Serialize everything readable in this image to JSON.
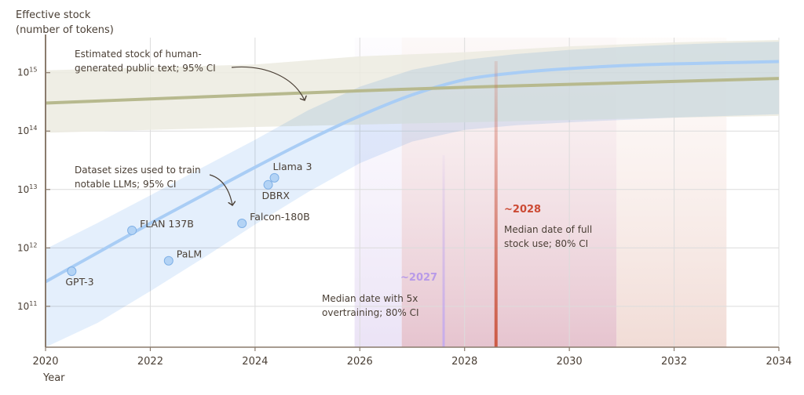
{
  "chart_data": {
    "type": "line",
    "title": "",
    "ylabel_lines": [
      "Effective stock",
      "(number of tokens)"
    ],
    "xlabel": "Year",
    "yscale": "log",
    "xlim": [
      2020,
      2034
    ],
    "ylim_log10": [
      10.3,
      15.6
    ],
    "x_ticks": [
      2020,
      2022,
      2024,
      2026,
      2028,
      2030,
      2032,
      2034
    ],
    "x_tick_labels": [
      "2020",
      "2022",
      "2024",
      "2026",
      "2028",
      "2030",
      "2032",
      "2034"
    ],
    "y_ticks_log10": [
      11,
      12,
      13,
      14,
      15
    ],
    "y_tick_labels": [
      {
        "base": "10",
        "exp": "11"
      },
      {
        "base": "10",
        "exp": "12"
      },
      {
        "base": "10",
        "exp": "13"
      },
      {
        "base": "10",
        "exp": "14"
      },
      {
        "base": "10",
        "exp": "15"
      }
    ],
    "grid": true,
    "colors": {
      "stock_line": "#b7b98e",
      "stock_band": "#ecebe0",
      "dataset_line": "#a9cdf5",
      "dataset_band": "#dbeafb",
      "point_fill": "#b3d3f5",
      "point_stroke": "#7fb0e6",
      "overtrain_band": "#ebe3f6",
      "overtrain_line": "#c6acec",
      "overtrain_label": "#b89ae8",
      "fullstock_band_inner": "#e6c4cf",
      "fullstock_band_outer": "#f1dcd6",
      "fullstock_line": "#cc5a45",
      "fullstock_label": "#cc4a34",
      "axis": "#8a7b6d",
      "gridline": "#dcdcdc"
    },
    "series": [
      {
        "name": "Estimated stock of human-generated public text",
        "x": [
          2020,
          2022,
          2024,
          2026,
          2028,
          2030,
          2032,
          2034
        ],
        "y_log10": [
          14.48,
          14.55,
          14.62,
          14.69,
          14.75,
          14.8,
          14.85,
          14.9
        ],
        "ci_low_log10": [
          13.97,
          14.02,
          14.07,
          14.11,
          14.15,
          14.19,
          14.23,
          14.26
        ],
        "ci_high_log10": [
          15.04,
          15.09,
          15.14,
          15.28,
          15.35,
          15.45,
          15.52,
          15.56
        ]
      },
      {
        "name": "Dataset sizes used to train notable LLMs",
        "x": [
          2020,
          2021,
          2022,
          2023,
          2024,
          2025,
          2026,
          2027,
          2028,
          2029,
          2030,
          2031,
          2032,
          2033,
          2034
        ],
        "y_log10": [
          11.42,
          11.92,
          12.42,
          12.9,
          13.38,
          13.84,
          14.26,
          14.62,
          14.88,
          15.0,
          15.07,
          15.12,
          15.15,
          15.17,
          15.19
        ],
        "ci_low_log10": [
          10.3,
          10.72,
          11.26,
          11.82,
          12.4,
          12.95,
          13.45,
          13.82,
          14.02,
          14.1,
          14.15,
          14.19,
          14.23,
          14.26,
          14.29
        ],
        "ci_high_log10": [
          11.98,
          12.43,
          12.9,
          13.38,
          13.85,
          14.35,
          14.76,
          15.05,
          15.22,
          15.32,
          15.39,
          15.44,
          15.48,
          15.51,
          15.53
        ]
      }
    ],
    "points": [
      {
        "label": "GPT-3",
        "x": 2020.5,
        "y_log10": 11.6,
        "label_pos": "below"
      },
      {
        "label": "FLAN 137B",
        "x": 2021.65,
        "y_log10": 12.3,
        "label_pos": "right"
      },
      {
        "label": "PaLM",
        "x": 2022.35,
        "y_log10": 11.78,
        "label_pos": "right"
      },
      {
        "label": "Falcon-180B",
        "x": 2023.75,
        "y_log10": 12.42,
        "label_pos": "right"
      },
      {
        "label": "DBRX",
        "x": 2024.25,
        "y_log10": 13.08,
        "label_pos": "below"
      },
      {
        "label": "Llama 3",
        "x": 2024.37,
        "y_log10": 13.2,
        "label_pos": "above-right"
      }
    ],
    "intervals": [
      {
        "name": "Median date with 5x overtraining; 80% CI",
        "low": 2025.9,
        "median": 2027.6,
        "high": 2030.9,
        "marker_label": "~2027"
      },
      {
        "name": "Median date of full stock use; 80% CI",
        "low": 2026.8,
        "median": 2028.6,
        "high": 2033.0,
        "marker_label": "~2028"
      }
    ],
    "annotations": [
      {
        "id": "stock",
        "lines": [
          "Estimated stock of human-",
          "generated public text; 95% CI"
        ]
      },
      {
        "id": "datasets",
        "lines": [
          "Dataset sizes used to train",
          "notable LLMs; 95% CI"
        ]
      },
      {
        "id": "overtrain",
        "lines": [
          "Median date with 5x",
          "overtraining; 80% CI"
        ]
      },
      {
        "id": "fullstock",
        "lines": [
          "Median date of full",
          "stock use; 80% CI"
        ]
      }
    ],
    "legend": "none"
  }
}
